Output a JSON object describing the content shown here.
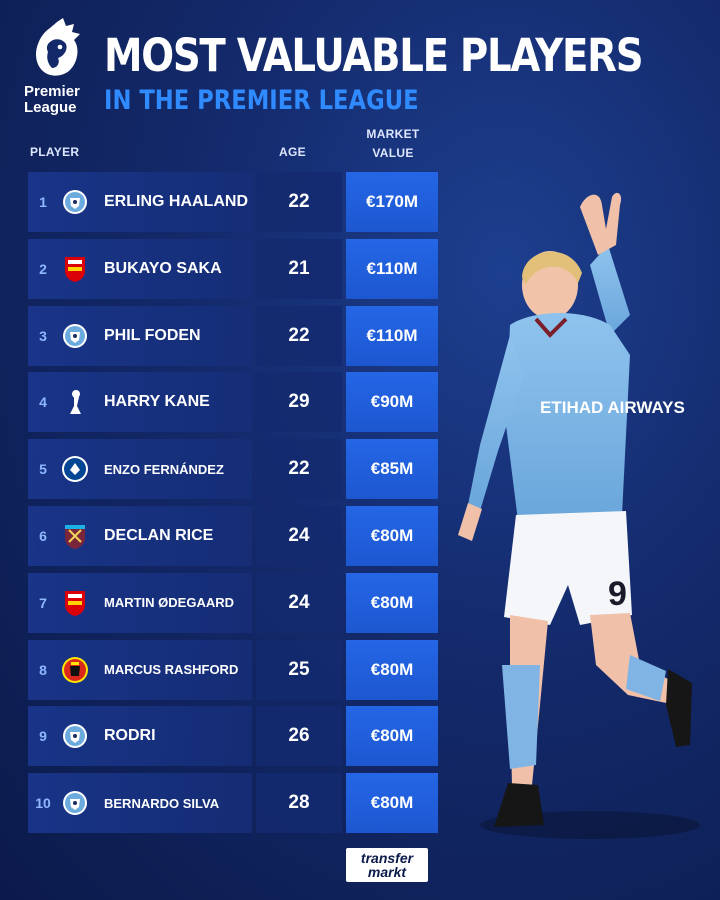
{
  "brand": {
    "league_word": "Premier League",
    "footer_logo_line1": "transfer",
    "footer_logo_line2": "markt"
  },
  "header": {
    "title": "MOST VALUABLE PLAYERS",
    "subtitle": "IN THE PREMIER LEAGUE"
  },
  "columns": {
    "player": "PLAYER",
    "age": "AGE",
    "value_line1": "MARKET",
    "value_line2": "VALUE"
  },
  "rows": [
    {
      "rank": "1",
      "club_icon": "man-city-crest-icon",
      "name": "ERLING HAALAND",
      "age": "22",
      "value": "€170M"
    },
    {
      "rank": "2",
      "club_icon": "arsenal-crest-icon",
      "name": "BUKAYO SAKA",
      "age": "21",
      "value": "€110M"
    },
    {
      "rank": "3",
      "club_icon": "man-city-crest-icon",
      "name": "PHIL FODEN",
      "age": "22",
      "value": "€110M"
    },
    {
      "rank": "4",
      "club_icon": "tottenham-crest-icon",
      "name": "HARRY KANE",
      "age": "29",
      "value": "€90M"
    },
    {
      "rank": "5",
      "club_icon": "chelsea-crest-icon",
      "name": "ENZO FERNÁNDEZ",
      "age": "22",
      "value": "€85M"
    },
    {
      "rank": "6",
      "club_icon": "west-ham-crest-icon",
      "name": "DECLAN RICE",
      "age": "24",
      "value": "€80M"
    },
    {
      "rank": "7",
      "club_icon": "arsenal-crest-icon",
      "name": "MARTIN ØDEGAARD",
      "age": "24",
      "value": "€80M"
    },
    {
      "rank": "8",
      "club_icon": "man-united-crest-icon",
      "name": "MARCUS RASHFORD",
      "age": "25",
      "value": "€80M"
    },
    {
      "rank": "9",
      "club_icon": "man-city-crest-icon",
      "name": "RODRI",
      "age": "26",
      "value": "€80M"
    },
    {
      "rank": "10",
      "club_icon": "man-city-crest-icon",
      "name": "BERNARDO SILVA",
      "age": "28",
      "value": "€80M"
    }
  ],
  "player_image": {
    "shirt_text": "ETIHAD AIRWAYS",
    "shirt_number": "9"
  },
  "colors": {
    "accent": "#2f8bff",
    "value_cell": "#2466e6",
    "background": "#13296a"
  }
}
